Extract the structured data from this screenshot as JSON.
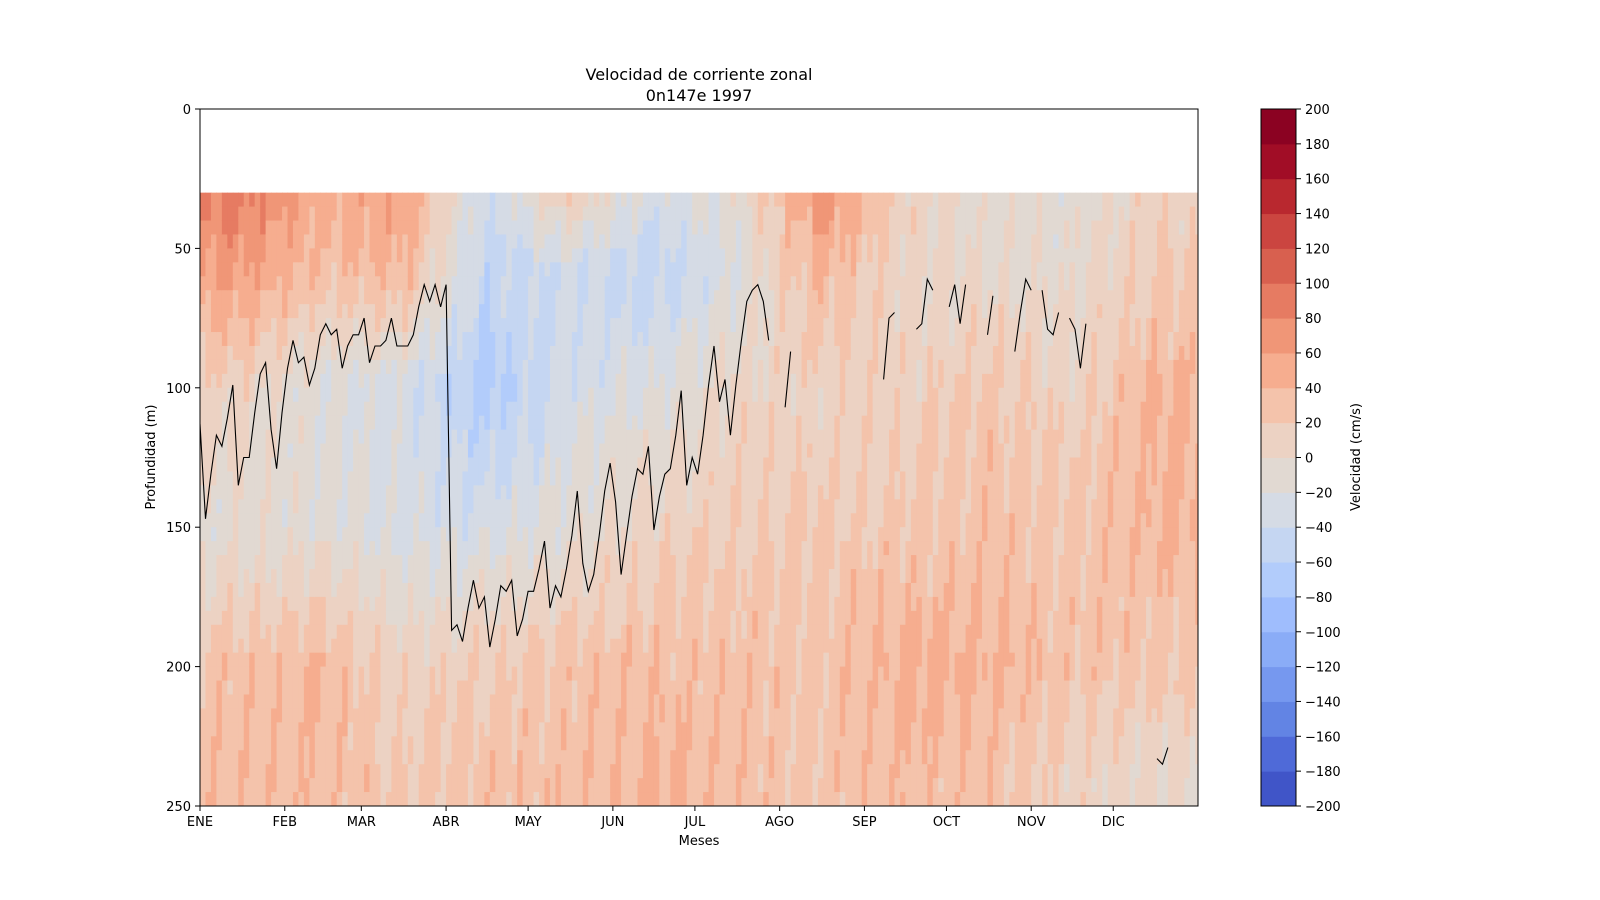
{
  "chart_data": {
    "type": "heatmap",
    "subtype": "filled-contour",
    "title": "Velocidad de corriente zonal",
    "subtitle": "0n147e 1997",
    "xlabel": "Meses",
    "ylabel": "Profundidad (m)",
    "x_tick_labels": [
      "ENE",
      "FEB",
      "MAR",
      "ABR",
      "MAY",
      "JUN",
      "JUL",
      "AGO",
      "SEP",
      "OCT",
      "NOV",
      "DIC"
    ],
    "x_tick_days": [
      0,
      31,
      59,
      90,
      120,
      151,
      181,
      212,
      243,
      273,
      304,
      334
    ],
    "xlim_days": [
      0,
      365
    ],
    "y_ticks": [
      0,
      50,
      100,
      150,
      200,
      250
    ],
    "ylim": [
      250,
      0
    ],
    "y_inverted": true,
    "data_depth_range": [
      30,
      240
    ],
    "colorbar": {
      "label": "Velocidad (cm/s)",
      "ticks": [
        200,
        180,
        160,
        140,
        120,
        100,
        80,
        60,
        40,
        20,
        0,
        -20,
        -40,
        -60,
        -80,
        -100,
        -120,
        -140,
        -160,
        -180,
        -200
      ],
      "tick_labels": [
        "200",
        "180",
        "160",
        "140",
        "120",
        "100",
        "80",
        "60",
        "40",
        "20",
        "0",
        "−20",
        "−40",
        "−60",
        "−80",
        "−100",
        "−120",
        "−140",
        "−160",
        "−180",
        "−200"
      ],
      "levels": [
        -200,
        -180,
        -160,
        -140,
        -120,
        -100,
        -80,
        -60,
        -40,
        -20,
        0,
        20,
        40,
        60,
        80,
        100,
        120,
        140,
        160,
        180,
        200
      ],
      "colors": [
        "#4055c8",
        "#4f6ad8",
        "#6284e4",
        "#7698ef",
        "#8aacf7",
        "#9fbdfd",
        "#b2ccfb",
        "#c5d6f2",
        "#d5dbe5",
        "#e1d9d2",
        "#ecd2c3",
        "#f4c3ab",
        "#f6ad8f",
        "#f09677",
        "#e67b62",
        "#d8604f",
        "#cb4540",
        "#b9282f",
        "#a10d26",
        "#8b0222"
      ]
    },
    "sample_profiles": [
      {
        "month": "ENE",
        "depths": [
          30,
          60,
          100,
          150,
          200,
          240
        ],
        "values": [
          90,
          60,
          10,
          -10,
          30,
          35
        ]
      },
      {
        "month": "FEB",
        "depths": [
          30,
          60,
          100,
          150,
          200,
          240
        ],
        "values": [
          50,
          30,
          -20,
          -10,
          40,
          35
        ]
      },
      {
        "month": "MAR",
        "depths": [
          30,
          60,
          100,
          150,
          200,
          240
        ],
        "values": [
          60,
          40,
          -30,
          -25,
          10,
          20
        ]
      },
      {
        "month": "ABR",
        "depths": [
          30,
          60,
          100,
          150,
          200,
          240
        ],
        "values": [
          -40,
          -50,
          -70,
          -30,
          20,
          30
        ]
      },
      {
        "month": "MAY",
        "depths": [
          30,
          60,
          100,
          150,
          200,
          240
        ],
        "values": [
          20,
          -40,
          -30,
          -10,
          30,
          35
        ]
      },
      {
        "month": "JUN",
        "depths": [
          30,
          60,
          100,
          150,
          200,
          240
        ],
        "values": [
          -30,
          -50,
          -20,
          10,
          35,
          40
        ]
      },
      {
        "month": "JUL",
        "depths": [
          30,
          60,
          100,
          150,
          200,
          240
        ],
        "values": [
          -10,
          -20,
          5,
          20,
          30,
          35
        ]
      },
      {
        "month": "AGO",
        "depths": [
          30,
          60,
          100,
          150,
          200,
          240
        ],
        "values": [
          70,
          40,
          10,
          20,
          30,
          25
        ]
      },
      {
        "month": "SEP",
        "depths": [
          30,
          60,
          100,
          150,
          200,
          240
        ],
        "values": [
          10,
          5,
          10,
          25,
          45,
          35
        ]
      },
      {
        "month": "OCT",
        "depths": [
          30,
          60,
          100,
          150,
          200,
          240
        ],
        "values": [
          -10,
          0,
          25,
          30,
          45,
          30
        ]
      },
      {
        "month": "NOV",
        "depths": [
          30,
          60,
          100,
          150,
          200,
          240
        ],
        "values": [
          -10,
          -5,
          10,
          25,
          30,
          10
        ]
      },
      {
        "month": "DIC",
        "depths": [
          30,
          60,
          100,
          150,
          200,
          240
        ],
        "values": [
          10,
          20,
          40,
          40,
          25,
          0
        ]
      }
    ],
    "grid": false,
    "legend": "colorbar-right"
  }
}
